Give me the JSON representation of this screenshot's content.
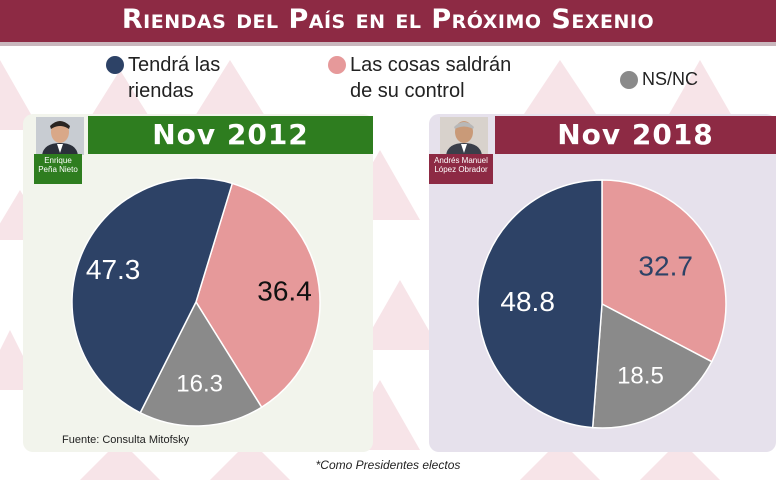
{
  "title": "Riendas del País en el Próximo Sexenio",
  "legend": [
    {
      "label_line1": "Tendrá las",
      "label_line2": "riendas",
      "color": "#2d4266"
    },
    {
      "label_line1": "Las cosas saldrán",
      "label_line2": "de su control",
      "color": "#e6999a"
    },
    {
      "label_line1": "NS/NC",
      "label_line2": "",
      "color": "#8a8a8a"
    }
  ],
  "panels": [
    {
      "header": "Nov 2012",
      "person_line1": "Enrique",
      "person_line2": "Peña Nieto"
    },
    {
      "header": "Nov 2018",
      "person_line1": "Andrés Manuel",
      "person_line2": "López Obrador"
    }
  ],
  "source": "Fuente: Consulta Mitofsky",
  "note": "*Como Presidentes electos",
  "colors": {
    "banner": "#8d2a44",
    "green": "#2e7d1f",
    "navy": "#2d4266",
    "pink": "#e6999a",
    "gray": "#8a8a8a"
  },
  "chart_data": [
    {
      "type": "pie",
      "title": "Nov 2012",
      "categories": [
        "Tendrá las riendas",
        "Las cosas saldrán de su control",
        "NS/NC"
      ],
      "values": [
        47.3,
        36.4,
        16.3
      ],
      "data_labels": [
        "47.3",
        "36.4",
        "16.3"
      ]
    },
    {
      "type": "pie",
      "title": "Nov 2018",
      "categories": [
        "Tendrá las riendas",
        "Las cosas saldrán de su control",
        "NS/NC"
      ],
      "values": [
        48.8,
        32.7,
        18.5
      ],
      "data_labels": [
        "48.8",
        "32.7",
        "18.5"
      ]
    }
  ]
}
